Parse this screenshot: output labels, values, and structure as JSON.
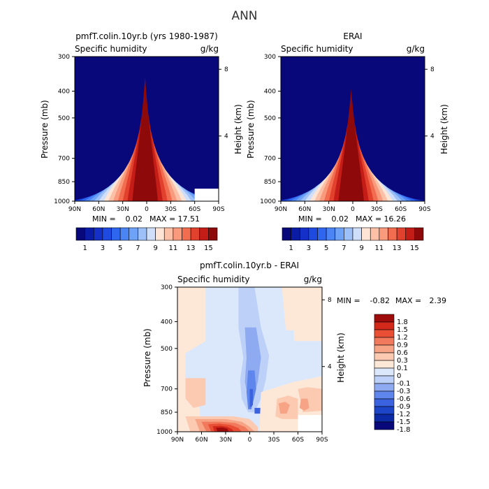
{
  "title": "ANN",
  "colors": {
    "full_field": [
      "#08087a",
      "#0a1ca6",
      "#1530c8",
      "#1f4adf",
      "#2f66ef",
      "#4a84f5",
      "#6ea2f7",
      "#9ec0f8",
      "#cfdffa",
      "#fde4d4",
      "#fcc0a6",
      "#f99a7c",
      "#f26d50",
      "#e2412d",
      "#c41c16",
      "#8e0a0a"
    ],
    "diff_field": [
      "#08087a",
      "#0c2aa6",
      "#1d45c8",
      "#3b62df",
      "#5f86ec",
      "#8eaaf1",
      "#bdd0f7",
      "#dbe8fb",
      "#fde8d8",
      "#fbcab1",
      "#f7a386",
      "#f27a5c",
      "#e94f35",
      "#d2291b",
      "#9e0c0c"
    ]
  },
  "chart_data": [
    {
      "id": "model",
      "type": "heatmap",
      "title": "pmfT.colin.10yr.b (yrs 1980-1987)",
      "subtitle_left": "Specific humidity",
      "subtitle_right": "g/kg",
      "xlabel": "",
      "ylabel": "Pressure (mb)",
      "y2label": "Height (km)",
      "x_ticks": [
        "90N",
        "60N",
        "30N",
        "0",
        "30S",
        "60S",
        "90S"
      ],
      "y_ticks": [
        "300",
        "400",
        "500",
        "700",
        "850",
        "1000"
      ],
      "y2_ticks": [
        "8",
        "4"
      ],
      "min_label": "MIN =",
      "min_value": "0.02",
      "max_label": "MAX =",
      "max_value": "17.51",
      "colorbar_labels": [
        "1",
        "3",
        "5",
        "7",
        "9",
        "11",
        "13",
        "15"
      ],
      "lat_range": [
        90,
        -90
      ],
      "pressure_range": [
        300,
        1000
      ],
      "peak_value": 17.51
    },
    {
      "id": "obs",
      "type": "heatmap",
      "title": "ERAI",
      "subtitle_left": "Specific humidity",
      "subtitle_right": "g/kg",
      "xlabel": "",
      "ylabel": "Pressure (mb)",
      "y2label": "Height (km)",
      "x_ticks": [
        "90N",
        "60N",
        "30N",
        "0",
        "30S",
        "60S",
        "90S"
      ],
      "y_ticks": [
        "300",
        "400",
        "500",
        "700",
        "850",
        "1000"
      ],
      "y2_ticks": [
        "8",
        "4"
      ],
      "min_label": "MIN =",
      "min_value": "0.02",
      "max_label": "MAX =",
      "max_value": "16.26",
      "colorbar_labels": [
        "1",
        "3",
        "5",
        "7",
        "9",
        "11",
        "13",
        "15"
      ],
      "lat_range": [
        90,
        -90
      ],
      "pressure_range": [
        300,
        1000
      ],
      "peak_value": 16.26
    },
    {
      "id": "diff",
      "type": "heatmap",
      "title": "pmfT.colin.10yr.b - ERAI",
      "subtitle_left": "Specific humidity",
      "subtitle_right": "g/kg",
      "xlabel": "",
      "ylabel": "Pressure (mb)",
      "y2label": "Height (km)",
      "x_ticks": [
        "90N",
        "60N",
        "30N",
        "0",
        "30S",
        "60S",
        "90S"
      ],
      "y_ticks": [
        "300",
        "400",
        "500",
        "700",
        "850",
        "1000"
      ],
      "y2_ticks": [
        "8",
        "4"
      ],
      "min_label": "MIN =",
      "min_value": "-0.82",
      "max_label": "MAX =",
      "max_value": "2.39",
      "colorbar_labels": [
        "1.8",
        "1.5",
        "1.2",
        "0.9",
        "0.6",
        "0.3",
        "0.1",
        "0",
        "-0.1",
        "-0.3",
        "-0.6",
        "-0.9",
        "-1.2",
        "-1.5",
        "-1.8"
      ],
      "lat_range": [
        90,
        -90
      ],
      "pressure_range": [
        300,
        1000
      ]
    }
  ]
}
